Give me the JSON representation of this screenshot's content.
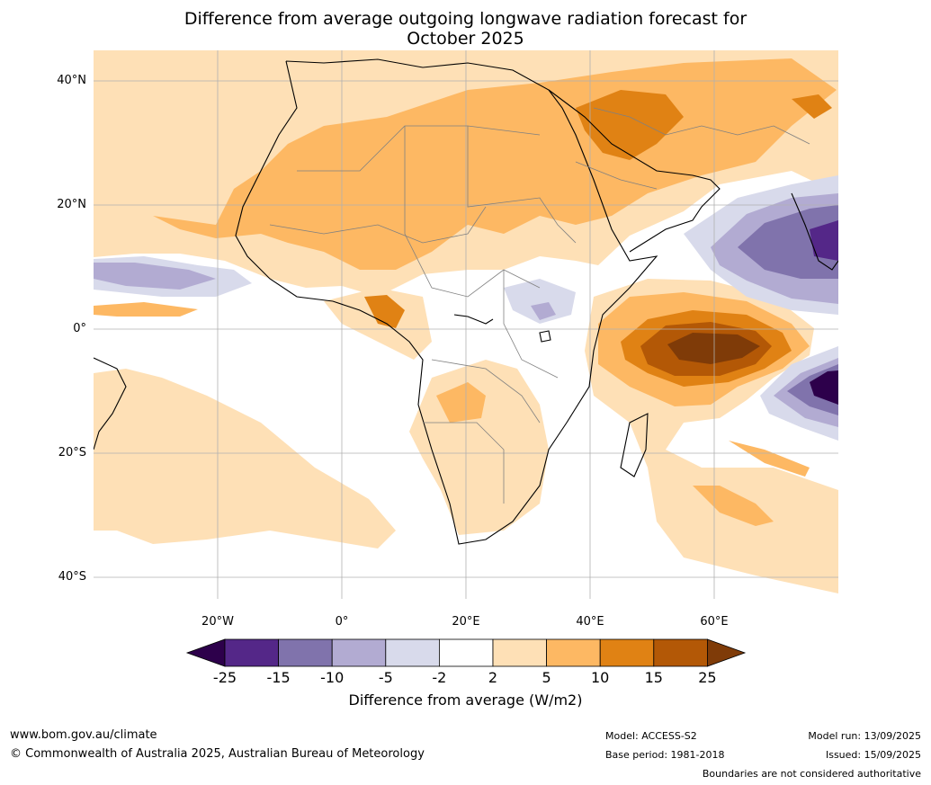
{
  "title_line1": "Difference from average outgoing longwave radiation forecast for",
  "title_line2": "October 2025",
  "lat_labels": [
    "40°N",
    "20°N",
    "0°",
    "20°S",
    "40°S"
  ],
  "lon_labels": [
    "20°W",
    "0°",
    "20°E",
    "40°E",
    "60°E"
  ],
  "colorbar": {
    "ticks": [
      "-25",
      "-15",
      "-10",
      "-5",
      "-2",
      "2",
      "5",
      "10",
      "15",
      "25"
    ],
    "colors": [
      "#2d004b",
      "#542788",
      "#8073ac",
      "#b2abd2",
      "#d8daeb",
      "#ffffff",
      "#fee0b6",
      "#fdb863",
      "#e08214",
      "#b35806",
      "#7f3b08"
    ],
    "title": "Difference from average (W/m2)"
  },
  "footer": {
    "website": "www.bom.gov.au/climate",
    "copyright": "© Commonwealth of Australia 2025, Australian Bureau of Meteorology",
    "model": "Model: ACCESS-S2",
    "base_period": "Base period: 1981-2018",
    "model_run": "Model run: 13/09/2025",
    "issued": "Issued: 15/09/2025",
    "disclaimer": "Boundaries are not considered authoritative"
  }
}
